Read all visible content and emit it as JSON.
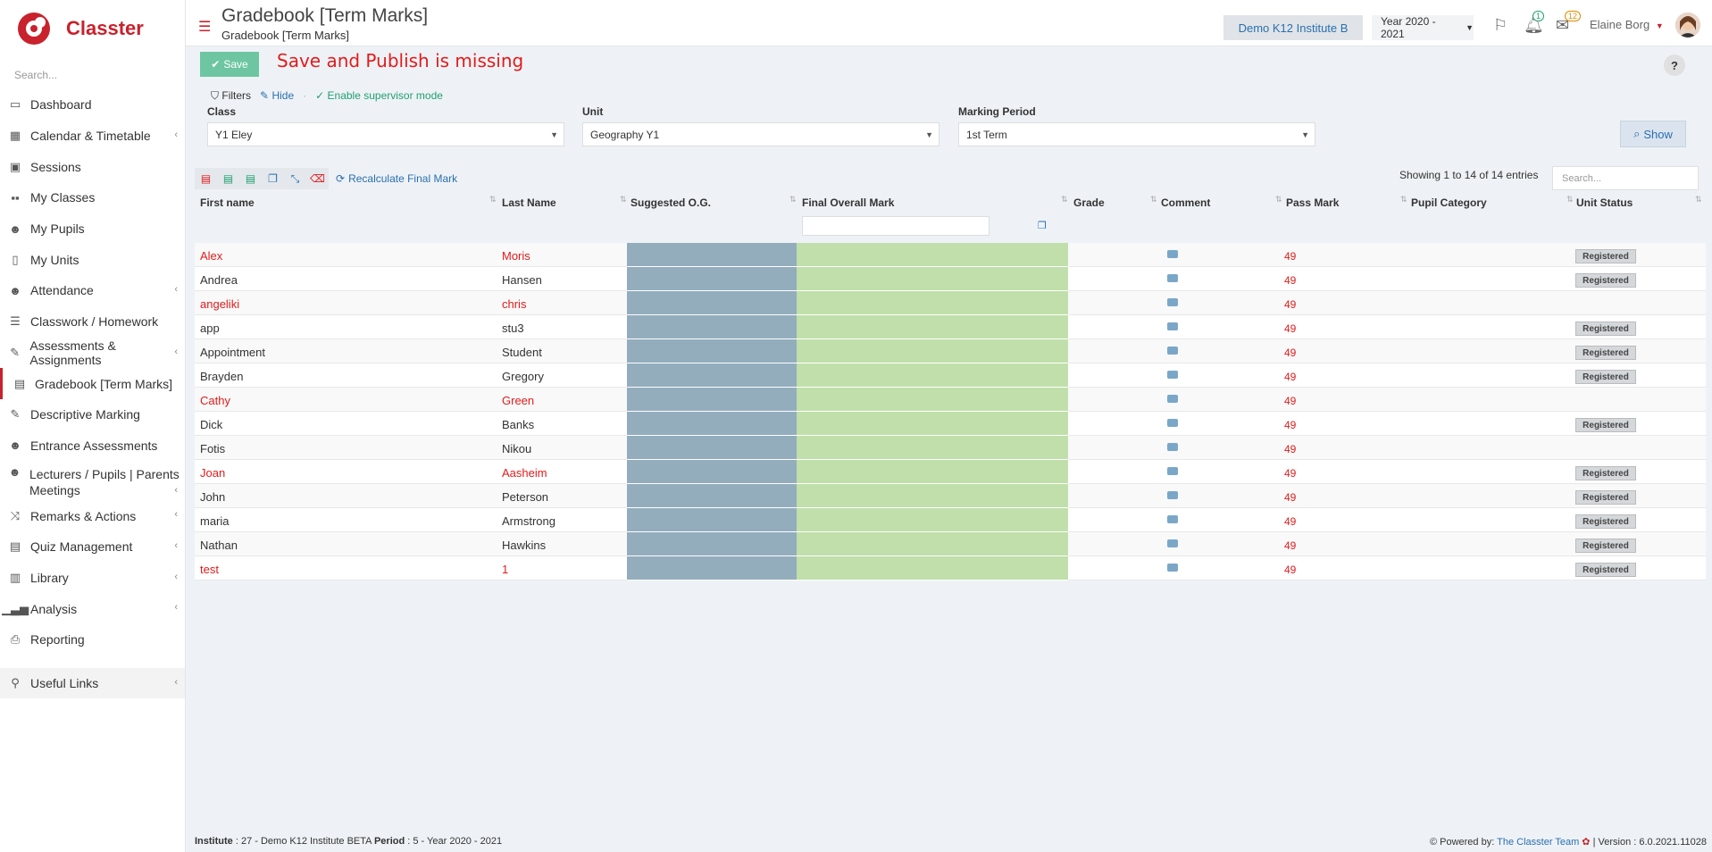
{
  "brand": "Classter",
  "search_placeholder": "Search...",
  "sidebar": {
    "items": [
      {
        "label": "Dashboard",
        "icon": "laptop-icon",
        "chev": ""
      },
      {
        "label": "Calendar & Timetable",
        "icon": "calendar-icon",
        "chev": "‹"
      },
      {
        "label": "Sessions",
        "icon": "sessions-icon",
        "chev": ""
      },
      {
        "label": "My Classes",
        "icon": "classes-icon",
        "chev": ""
      },
      {
        "label": "My Pupils",
        "icon": "pupils-icon",
        "chev": ""
      },
      {
        "label": "My Units",
        "icon": "book-icon",
        "chev": ""
      },
      {
        "label": "Attendance",
        "icon": "attendance-icon",
        "chev": "‹"
      },
      {
        "label": "Classwork / Homework",
        "icon": "list-icon",
        "chev": ""
      },
      {
        "label": "Assessments & Assignments",
        "icon": "edit-icon",
        "chev": "‹"
      },
      {
        "label": "Gradebook [Term Marks]",
        "icon": "gradebook-icon",
        "chev": ""
      },
      {
        "label": "Descriptive Marking",
        "icon": "descriptive-icon",
        "chev": ""
      },
      {
        "label": "Entrance Assessments",
        "icon": "entrance-icon",
        "chev": ""
      },
      {
        "label": "Lecturers / Pupils | Parents Meetings",
        "icon": "meetings-icon",
        "chev": "‹"
      },
      {
        "label": "Remarks & Actions",
        "icon": "remarks-icon",
        "chev": "‹"
      },
      {
        "label": "Quiz Management",
        "icon": "quiz-icon",
        "chev": "‹"
      },
      {
        "label": "Library",
        "icon": "library-icon",
        "chev": "‹"
      },
      {
        "label": "Analysis",
        "icon": "analysis-icon",
        "chev": "‹"
      },
      {
        "label": "Reporting",
        "icon": "print-icon",
        "chev": ""
      }
    ],
    "useful_links": "Useful Links"
  },
  "header": {
    "title": "Gradebook [Term Marks]",
    "subtitle": "Gradebook [Term Marks]",
    "institute": "Demo K12 Institute B",
    "year": "Year 2020 - 2021",
    "bell_count": "1",
    "mail_count": "12",
    "user": "Elaine Borg"
  },
  "toolbar": {
    "save_label": "Save",
    "annotation": "Save and Publish is missing",
    "help": "?"
  },
  "filters": {
    "filters_label": "Filters",
    "hide_label": "Hide",
    "supervisor_label": "Enable supervisor mode",
    "class_label": "Class",
    "class_value": "Y1 Eley",
    "unit_label": "Unit",
    "unit_value": "Geography Y1",
    "period_label": "Marking Period",
    "period_value": "1st Term",
    "show_label": "Show"
  },
  "table": {
    "recalc_label": "Recalculate Final Mark",
    "entries_info": "Showing 1 to 14 of 14 entries",
    "search_placeholder": "Search...",
    "columns": [
      "First name",
      "Last Name",
      "Suggested O.G.",
      "Final Overall Mark",
      "Grade",
      "Comment",
      "Pass Mark",
      "Pupil Category",
      "Unit Status"
    ],
    "rows": [
      {
        "first": "Alex",
        "last": "Moris",
        "pass": "49",
        "status": "Registered",
        "red": true
      },
      {
        "first": "Andrea",
        "last": "Hansen",
        "pass": "49",
        "status": "Registered",
        "red": false
      },
      {
        "first": "angeliki",
        "last": "chris",
        "pass": "49",
        "status": "",
        "red": true
      },
      {
        "first": "app",
        "last": "stu3",
        "pass": "49",
        "status": "Registered",
        "red": false
      },
      {
        "first": "Appointment",
        "last": "Student",
        "pass": "49",
        "status": "Registered",
        "red": false
      },
      {
        "first": "Brayden",
        "last": "Gregory",
        "pass": "49",
        "status": "Registered",
        "red": false
      },
      {
        "first": "Cathy",
        "last": "Green",
        "pass": "49",
        "status": "",
        "red": true
      },
      {
        "first": "Dick",
        "last": "Banks",
        "pass": "49",
        "status": "Registered",
        "red": false
      },
      {
        "first": "Fotis",
        "last": "Nikou",
        "pass": "49",
        "status": "",
        "red": false
      },
      {
        "first": "Joan",
        "last": "Aasheim",
        "pass": "49",
        "status": "Registered",
        "red": true
      },
      {
        "first": "John",
        "last": "Peterson",
        "pass": "49",
        "status": "Registered",
        "red": false
      },
      {
        "first": "maria",
        "last": "Armstrong",
        "pass": "49",
        "status": "Registered",
        "red": false
      },
      {
        "first": "Nathan",
        "last": "Hawkins",
        "pass": "49",
        "status": "Registered",
        "red": false
      },
      {
        "first": "test",
        "last": "1",
        "pass": "49",
        "status": "Registered",
        "red": true
      }
    ]
  },
  "footer": {
    "institute_label": "Institute",
    "institute_value": ": 27 - Demo K12 Institute BETA",
    "period_label": "Period",
    "period_value": ": 5 - Year 2020 - 2021",
    "powered": "Powered by:",
    "team": "The Classter Team",
    "version": "| Version : 6.0.2021.11028"
  },
  "colors": {
    "brand": "#c8222d",
    "save": "#6dc6a1",
    "og": "#93adbd",
    "final": "#c0dfaa",
    "annotation": "#e31b1b"
  }
}
